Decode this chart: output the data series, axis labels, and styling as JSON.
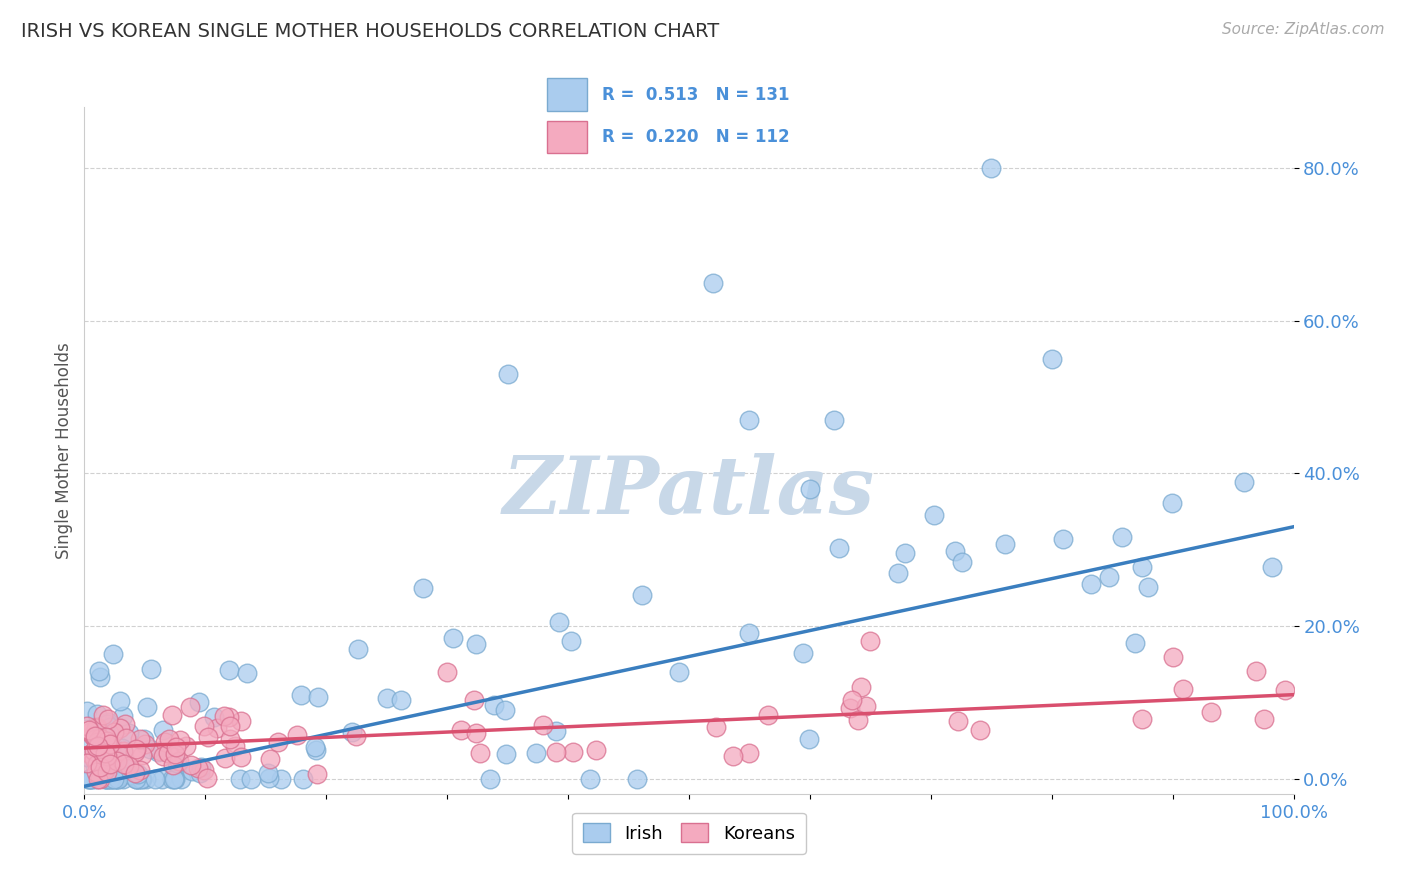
{
  "title": "IRISH VS KOREAN SINGLE MOTHER HOUSEHOLDS CORRELATION CHART",
  "source_text": "Source: ZipAtlas.com",
  "ylabel": "Single Mother Households",
  "xlim": [
    0,
    1.0
  ],
  "ylim": [
    -0.02,
    0.88
  ],
  "ytick_positions": [
    0.0,
    0.2,
    0.4,
    0.6,
    0.8
  ],
  "ytick_labels": [
    "0.0%",
    "20.0%",
    "40.0%",
    "60.0%",
    "80.0%"
  ],
  "irish_R": 0.513,
  "irish_N": 131,
  "korean_R": 0.22,
  "korean_N": 112,
  "irish_line_color": "#3a7ebf",
  "korean_line_color": "#d94f6e",
  "irish_marker_face": "#aaccee",
  "irish_marker_edge": "#7aaad0",
  "korean_marker_face": "#f4aabf",
  "korean_marker_edge": "#d97090",
  "title_color": "#333333",
  "axis_label_color": "#555555",
  "tick_label_color": "#4a90d9",
  "grid_color": "#cccccc",
  "background_color": "#ffffff",
  "watermark_color": "#c8d8e8",
  "legend_irish_label": "Irish",
  "legend_korean_label": "Koreans",
  "irish_line_slope": 0.34,
  "irish_line_intercept": -0.01,
  "korean_line_slope": 0.07,
  "korean_line_intercept": 0.04
}
